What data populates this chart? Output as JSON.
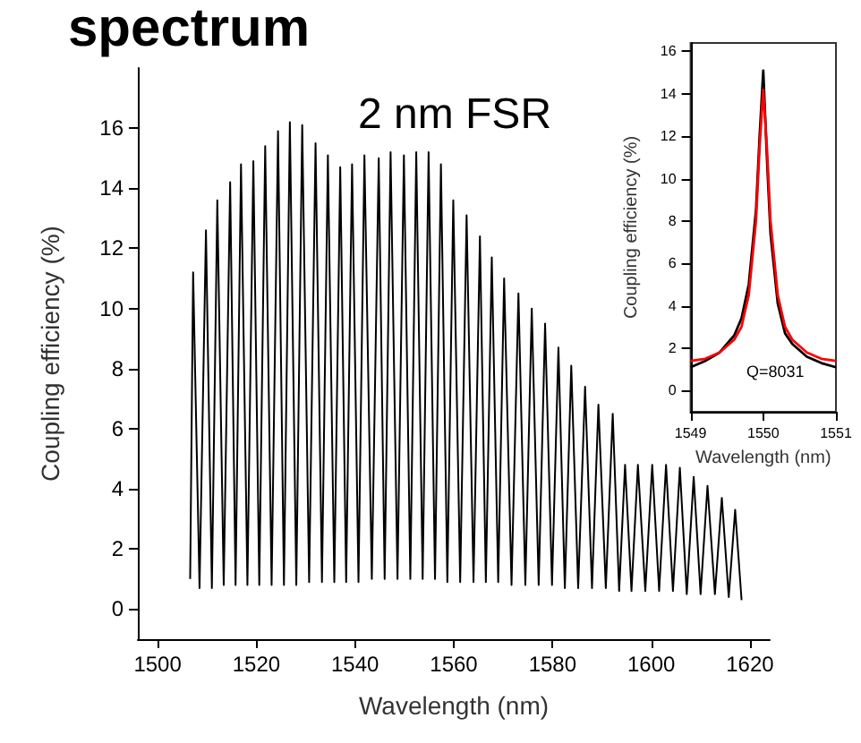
{
  "chart_data": [
    {
      "type": "line",
      "title": "spectrum",
      "xlabel": "Wavelength (nm)",
      "ylabel": "Coupling efficiency (%)",
      "xlim": [
        1496,
        1624
      ],
      "ylim": [
        -1,
        18
      ],
      "xticks": [
        1500,
        1520,
        1540,
        1560,
        1580,
        1600,
        1620
      ],
      "yticks": [
        0,
        2,
        4,
        6,
        8,
        10,
        12,
        14,
        16
      ],
      "annotations": [
        "2 nm FSR"
      ],
      "series": [
        {
          "color": "#000000",
          "x": [
            1506.6,
            1507.2,
            1508.5,
            1509.8,
            1511.0,
            1512.1,
            1513.4,
            1514.7,
            1515.8,
            1516.9,
            1518.2,
            1519.4,
            1520.6,
            1521.8,
            1523.1,
            1524.4,
            1525.6,
            1526.8,
            1528.1,
            1529.3,
            1530.7,
            1532.0,
            1533.3,
            1534.5,
            1535.8,
            1537.0,
            1538.2,
            1539.4,
            1540.7,
            1541.9,
            1543.4,
            1544.8,
            1546.0,
            1547.2,
            1548.6,
            1549.9,
            1551.2,
            1552.4,
            1553.7,
            1554.9,
            1556.2,
            1557.4,
            1558.7,
            1559.9,
            1561.3,
            1562.6,
            1564.0,
            1565.3,
            1566.5,
            1567.7,
            1569.0,
            1570.2,
            1571.7,
            1573.1,
            1574.5,
            1575.8,
            1577.2,
            1578.5,
            1579.9,
            1581.2,
            1582.5,
            1583.8,
            1585.2,
            1586.6,
            1588.0,
            1589.3,
            1590.8,
            1592.2,
            1593.5,
            1594.7,
            1596.0,
            1597.3,
            1598.8,
            1600.2,
            1601.6,
            1603.0,
            1604.4,
            1605.8,
            1607.2,
            1608.6,
            1610.0,
            1611.4,
            1612.9,
            1614.3,
            1615.7,
            1617.0,
            1618.3
          ],
          "values": [
            1.0,
            11.2,
            0.7,
            12.6,
            0.7,
            13.6,
            0.8,
            14.2,
            0.8,
            14.8,
            0.8,
            14.9,
            0.8,
            15.4,
            0.8,
            15.9,
            0.8,
            16.2,
            0.8,
            16.1,
            0.9,
            15.5,
            0.9,
            15.1,
            0.9,
            14.7,
            0.9,
            14.8,
            0.9,
            15.1,
            1.0,
            15.0,
            1.0,
            15.2,
            1.0,
            15.1,
            1.0,
            15.2,
            1.0,
            15.2,
            1.0,
            14.8,
            0.9,
            13.6,
            0.9,
            13.1,
            0.9,
            12.4,
            0.9,
            11.7,
            0.9,
            11.0,
            0.8,
            10.5,
            0.8,
            10.0,
            0.8,
            9.5,
            0.8,
            8.7,
            0.7,
            8.1,
            0.7,
            7.4,
            0.7,
            6.8,
            0.7,
            6.5,
            0.6,
            4.8,
            0.6,
            4.8,
            0.6,
            4.8,
            0.6,
            4.8,
            0.6,
            4.7,
            0.5,
            4.4,
            0.5,
            4.1,
            0.5,
            3.7,
            0.4,
            3.3,
            0.3
          ]
        }
      ]
    },
    {
      "type": "line",
      "xlabel": "Wavelength (nm)",
      "ylabel": "Coupling efficiency (%)",
      "xlim": [
        1549,
        1551
      ],
      "ylim": [
        -1,
        16.4
      ],
      "xticks": [
        1549,
        1550,
        1551
      ],
      "yticks": [
        0,
        2,
        4,
        6,
        8,
        10,
        12,
        14,
        16
      ],
      "annotations": [
        "Q=8031"
      ],
      "series": [
        {
          "color": "#000000",
          "x": [
            1549,
            1549.2,
            1549.4,
            1549.6,
            1549.7,
            1549.8,
            1549.9,
            1549.95,
            1550,
            1550.05,
            1550.1,
            1550.2,
            1550.3,
            1550.4,
            1550.6,
            1550.8,
            1551
          ],
          "values": [
            1.1,
            1.4,
            1.8,
            2.6,
            3.4,
            5.0,
            8.5,
            12,
            15.1,
            11.0,
            7.4,
            4.1,
            2.7,
            2.2,
            1.6,
            1.3,
            1.1
          ]
        },
        {
          "color": "#ff0000",
          "x": [
            1549,
            1549.2,
            1549.4,
            1549.6,
            1549.7,
            1549.8,
            1549.9,
            1549.95,
            1550,
            1550.05,
            1550.1,
            1550.2,
            1550.3,
            1550.4,
            1550.6,
            1550.8,
            1551
          ],
          "values": [
            1.4,
            1.5,
            1.8,
            2.4,
            3.0,
            4.5,
            8.0,
            11.5,
            14.2,
            11.5,
            8.0,
            4.5,
            3.0,
            2.4,
            1.8,
            1.5,
            1.4
          ]
        }
      ]
    }
  ]
}
